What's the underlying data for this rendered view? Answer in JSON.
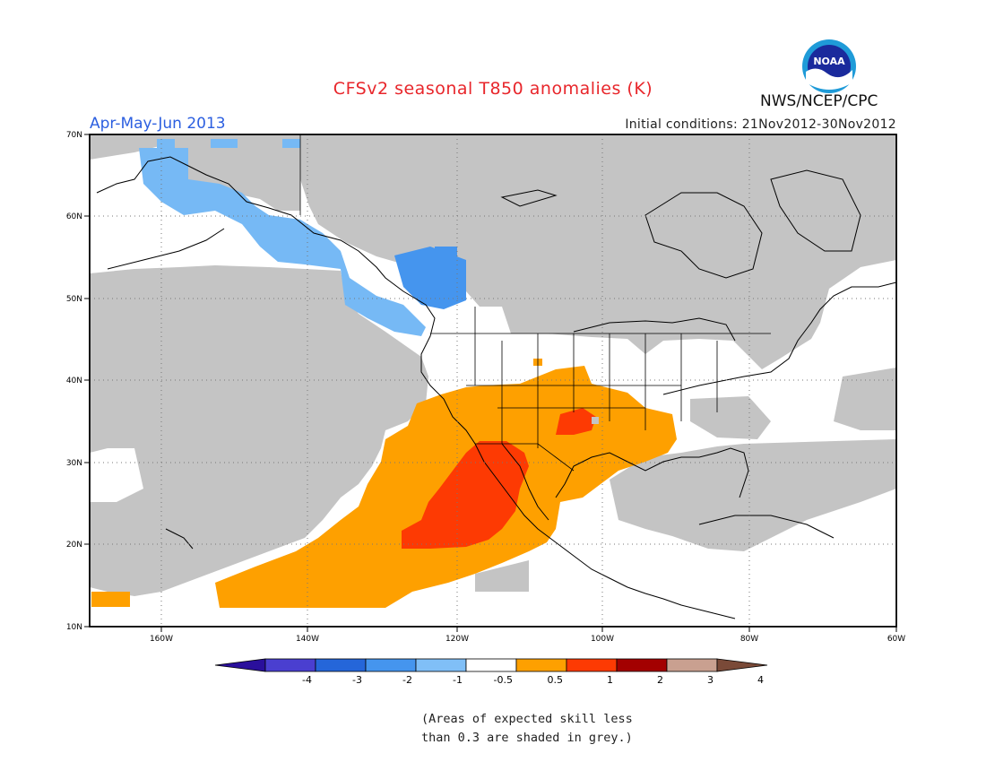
{
  "title": "CFSv2 seasonal T850 anomalies (K)",
  "period": "Apr-May-Jun 2013",
  "initial_conditions": "Initial conditions: 21Nov2012-30Nov2012",
  "agency": "NWS/NCEP/CPC",
  "logo_text": "NOAA",
  "note_lines": [
    "(Areas of expected skill less",
    "than 0.3 are shaded in grey.)"
  ],
  "map": {
    "lon_range": [
      -172,
      -60
    ],
    "lat_range": [
      10,
      70
    ],
    "lat_labels": [
      "70N",
      "60N",
      "50N",
      "40N",
      "30N",
      "20N",
      "10N"
    ],
    "lon_labels": [
      "160W",
      "140W",
      "120W",
      "100W",
      "80W",
      "60W"
    ]
  },
  "colors": {
    "grey_low_skill": "#c4c4c4",
    "lightblue": "#76b9f5",
    "blue": "#4595ee",
    "orange": "#fea000",
    "red_orange": "#fd3a03"
  },
  "colorbar": {
    "labels": [
      "-4",
      "-3",
      "-2",
      "-1",
      "-0.5",
      "0.5",
      "1",
      "2",
      "3",
      "4"
    ],
    "colors": [
      "#2a0f9c",
      "#4a3fd0",
      "#2566d9",
      "#4595ee",
      "#80bff7",
      "#ffffff",
      "#fea000",
      "#fd3a03",
      "#a30000",
      "#c9a090",
      "#7a4a38"
    ]
  }
}
